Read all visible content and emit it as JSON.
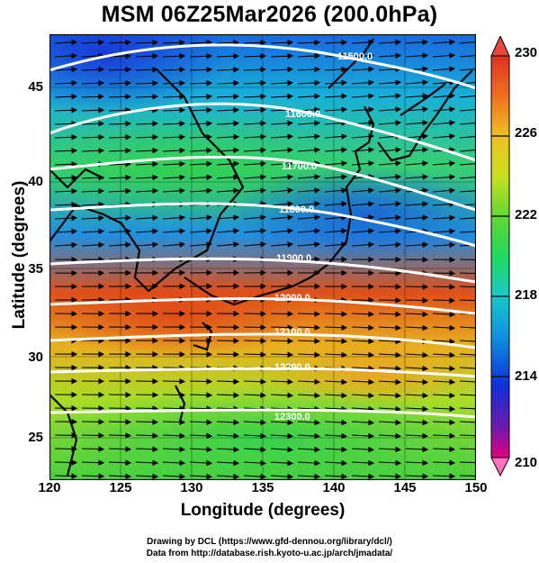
{
  "title": "MSM 06Z25Mar2026 (200.0hPa)",
  "x_axis": {
    "label": "Longitude (degrees)",
    "ticks": [
      "120",
      "125",
      "130",
      "135",
      "140",
      "145",
      "150"
    ]
  },
  "y_axis": {
    "label": "Latitude  (degrees)",
    "ticks": [
      "45",
      "40",
      "35",
      "30",
      "25"
    ]
  },
  "colorbar": {
    "ticks": [
      "230",
      "226",
      "222",
      "218",
      "214",
      "210"
    ],
    "colors": [
      "#e2007a",
      "#4a1cb0",
      "#1030d8",
      "#1090e0",
      "#18c8c8",
      "#20d860",
      "#60d830",
      "#c8e020",
      "#f0c020",
      "#f07020",
      "#e03020"
    ]
  },
  "contours": {
    "labels": [
      "11500.0",
      "11600.0",
      "11700.0",
      "11800.0",
      "11900.0",
      "12000.0",
      "12100.0",
      "12200.0",
      "12300.0"
    ],
    "color": "#ffffff"
  },
  "credits": {
    "line1": "Drawing by DCL (https://www.gfd-dennou.org/library/dcl/)",
    "line2": "Data from http://database.rish.kyoto-u.ac.jp/arch/jmadata/"
  },
  "chart_data": {
    "type": "map",
    "variable": "temperature (K) shaded, geopotential height contours, wind vectors",
    "level": "200.0hPa",
    "xlim": [
      120,
      150
    ],
    "ylim": [
      22.5,
      47.5
    ],
    "colorbar_range": [
      210,
      230
    ],
    "contour_levels": [
      11500,
      11600,
      11700,
      11800,
      11900,
      12000,
      12100,
      12200,
      12300
    ]
  }
}
